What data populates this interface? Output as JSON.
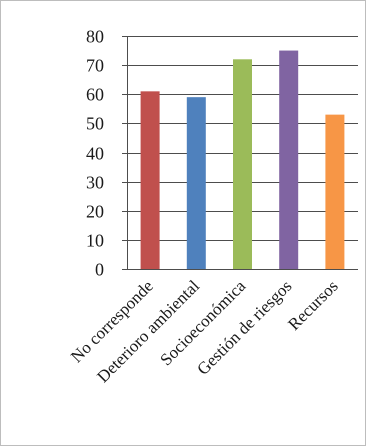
{
  "chart_data": {
    "type": "bar",
    "categories": [
      "No corresponde",
      "Deterioro ambiental",
      "Socioeconómica",
      "Gestión de riesgos",
      "Recursos"
    ],
    "values": [
      61,
      59,
      72,
      75,
      53
    ],
    "colors": [
      "#c0504d",
      "#4f81bd",
      "#9bbb59",
      "#8064a2",
      "#f79646"
    ],
    "ylim": [
      0,
      80
    ],
    "yticks": [
      0,
      10,
      20,
      30,
      40,
      50,
      60,
      70,
      80
    ],
    "grid": true,
    "legend": "none",
    "title": "",
    "xlabel": "",
    "ylabel": ""
  }
}
